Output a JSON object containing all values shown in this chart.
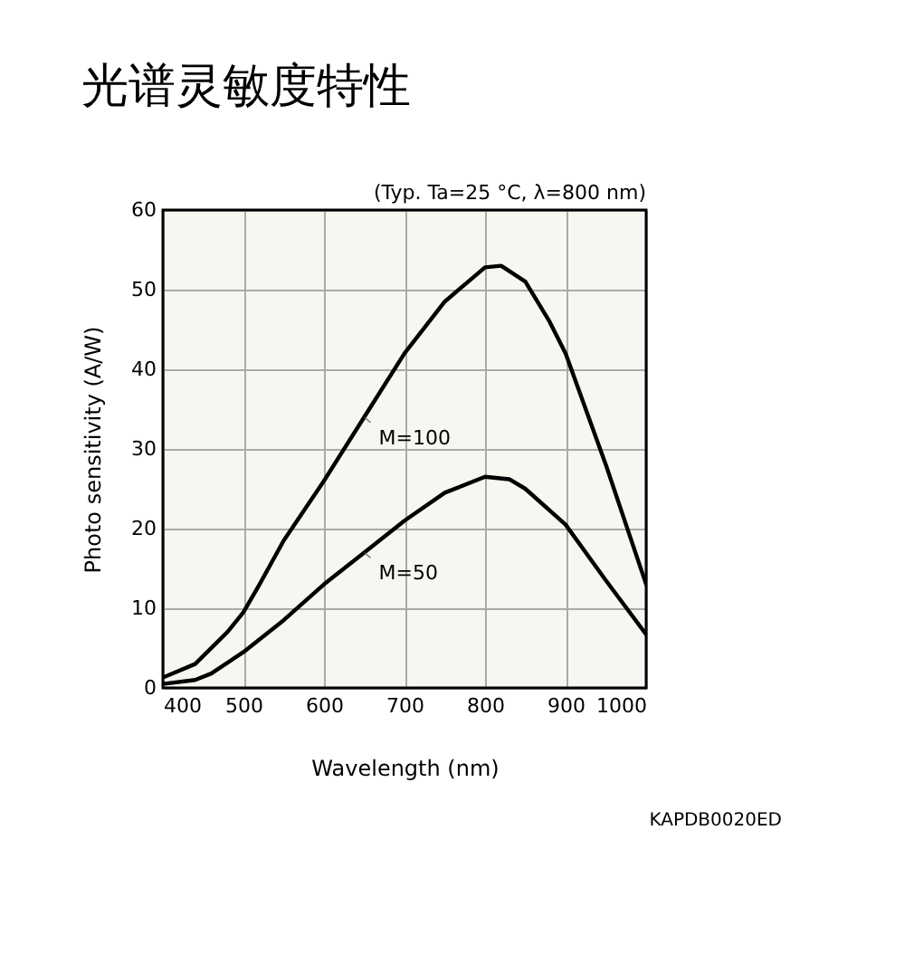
{
  "chart_data": {
    "type": "line",
    "title": "光谱灵敏度特性",
    "subtitle": "(Typ. Ta=25 °C, λ=800 nm)",
    "xlabel": "Wavelength (nm)",
    "ylabel": "Photo sensitivity (A/W)",
    "annotations": [
      "KAPDB0020ED"
    ],
    "xlim": [
      400,
      1000
    ],
    "xticks": [
      400,
      500,
      600,
      700,
      800,
      900,
      1000
    ],
    "ylim": [
      0,
      60
    ],
    "yticks": [
      0,
      10,
      20,
      30,
      40,
      50,
      60
    ],
    "grid": true,
    "line_style": "solid",
    "series": [
      {
        "name": "M=100",
        "color": "#000000",
        "x": [
          400,
          440,
          480,
          500,
          520,
          550,
          600,
          650,
          700,
          750,
          800,
          820,
          850,
          880,
          900,
          950,
          1000
        ],
        "values": [
          1.3,
          3,
          7,
          9.5,
          13,
          18.5,
          26,
          34,
          42,
          48.5,
          52.8,
          53,
          51,
          46,
          42,
          28,
          13
        ]
      },
      {
        "name": "M=50",
        "color": "#000000",
        "x": [
          400,
          440,
          460,
          500,
          550,
          600,
          650,
          700,
          750,
          800,
          830,
          850,
          900,
          950,
          1000
        ],
        "values": [
          0.5,
          1,
          1.8,
          4.5,
          8.5,
          13,
          17,
          21,
          24.5,
          26.5,
          26.2,
          25,
          20.5,
          13.5,
          6.7
        ]
      }
    ]
  }
}
